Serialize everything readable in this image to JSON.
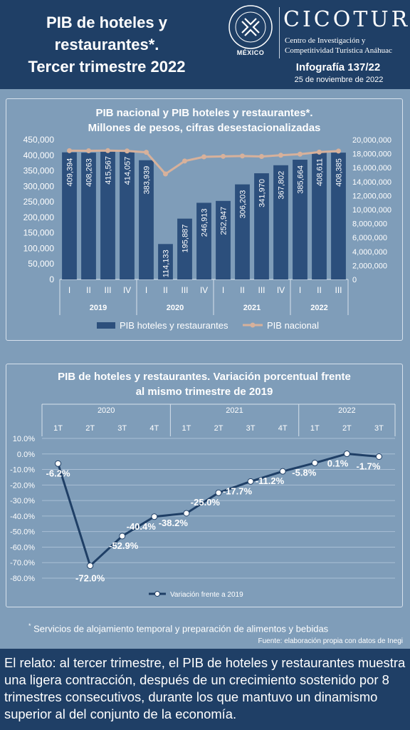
{
  "header": {
    "title_lines": [
      "PIB de hoteles y",
      "restaurantes*.",
      "Tercer trimestre 2022"
    ],
    "university_seal_text": "UNIVERSIDAD ANÁHUAC · VINCE IN BONO MALUM",
    "university_country": "MÉXICO",
    "brand": "CICOTUR",
    "brand_sub_lines": [
      "Centro de Investigación y",
      "Competitividad Turística Anáhuac"
    ],
    "infographic_number": "Infografía 137/22",
    "date": "25 de noviembre de 2022"
  },
  "colors": {
    "header_bg": "#1f3f66",
    "page_bg": "#7f9db9",
    "bar": "#2c4f7c",
    "nacional_line": "#d7b19b",
    "variation_line": "#1f3f66"
  },
  "chart_data": [
    {
      "type": "bar",
      "title_lines": [
        "PIB nacional y PIB hoteles y restaurantes*.",
        "Millones de pesos, cifras desestacionalizadas"
      ],
      "quarters": [
        "I",
        "II",
        "III",
        "IV",
        "I",
        "II",
        "III",
        "IV",
        "I",
        "II",
        "III",
        "IV",
        "I",
        "II",
        "III"
      ],
      "years": [
        {
          "label": "2019",
          "count": 4
        },
        {
          "label": "2020",
          "count": 4
        },
        {
          "label": "2021",
          "count": 4
        },
        {
          "label": "2022",
          "count": 3
        }
      ],
      "series": [
        {
          "name": "PIB hoteles y restaurantes",
          "type": "bar",
          "axis": "left",
          "values": [
            409394,
            408263,
            415567,
            414057,
            383939,
            114133,
            195887,
            246913,
            252947,
            306203,
            341970,
            367802,
            385664,
            408611,
            408385
          ],
          "labels": [
            "409,394",
            "408,263",
            "415,567",
            "414,057",
            "383,939",
            "114,133",
            "195,887",
            "246,913",
            "252,947",
            "306,203",
            "341,970",
            "367,802",
            "385,664",
            "408,611",
            "408,385"
          ]
        },
        {
          "name": "PIB nacional",
          "type": "line",
          "axis": "right",
          "values": [
            18430000,
            18420000,
            18440000,
            18390000,
            18200000,
            15100000,
            16950000,
            17550000,
            17620000,
            17670000,
            17600000,
            17780000,
            17930000,
            18230000,
            18380000
          ]
        }
      ],
      "left_axis": {
        "min": 0,
        "max": 450000,
        "ticks": [
          "0",
          "50,000",
          "100,000",
          "150,000",
          "200,000",
          "250,000",
          "300,000",
          "350,000",
          "400,000",
          "450,000"
        ]
      },
      "right_axis": {
        "min": 0,
        "max": 20000000,
        "ticks": [
          "0",
          "2,000,000",
          "4,000,000",
          "6,000,000",
          "8,000,000",
          "10,000,000",
          "12,000,000",
          "14,000,000",
          "16,000,000",
          "18,000,000",
          "20,000,000"
        ]
      },
      "legend_position": "bottom"
    },
    {
      "type": "line",
      "title_lines": [
        "PIB de hoteles y restaurantes. Variación porcentual frente",
        "al mismo trimestre de 2019"
      ],
      "quarters": [
        "1T",
        "2T",
        "3T",
        "4T",
        "1T",
        "2T",
        "3T",
        "4T",
        "1T",
        "2T",
        "3T"
      ],
      "years": [
        {
          "label": "2020",
          "count": 4
        },
        {
          "label": "2021",
          "count": 4
        },
        {
          "label": "2022",
          "count": 3
        }
      ],
      "series": [
        {
          "name": "Variación frente a 2019",
          "values": [
            -6.2,
            -72.0,
            -52.9,
            -40.4,
            -38.2,
            -25.0,
            -17.7,
            -11.2,
            -5.8,
            0.1,
            -1.7
          ],
          "labels": [
            "-6.2%",
            "-72.0%",
            "-52.9%",
            "-40.4%",
            "-38.2%",
            "-25.0%",
            "-17.7%",
            "-11.2%",
            "-5.8%",
            "0.1%",
            "-1.7%"
          ]
        }
      ],
      "y_axis": {
        "min": -80,
        "max": 10,
        "ticks": [
          "10.0%",
          "0.0%",
          "-10.0%",
          "-20.0%",
          "-30.0%",
          "-40.0%",
          "-50.0%",
          "-60.0%",
          "-70.0%",
          "-80.0%"
        ]
      },
      "grid": true,
      "legend_position": "bottom"
    }
  ],
  "footnote": {
    "mark": "*",
    "text": " Servicios de alojamiento temporal y preparación de alimentos y bebidas"
  },
  "source": "Fuente: elaboración propia con datos de Inegi",
  "relato": "El relato: al tercer trimestre, el PIB de hoteles y restaurantes muestra una ligera contracción, después de un crecimiento sostenido por 8 trimestres consecutivos, durante los que mantuvo un dinamismo superior al del conjunto de la economía."
}
